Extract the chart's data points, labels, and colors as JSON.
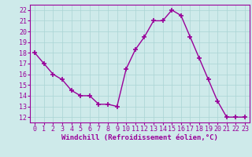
{
  "x": [
    0,
    1,
    2,
    3,
    4,
    5,
    6,
    7,
    8,
    9,
    10,
    11,
    12,
    13,
    14,
    15,
    16,
    17,
    18,
    19,
    20,
    21,
    22,
    23
  ],
  "y": [
    18,
    17,
    16,
    15.5,
    14.5,
    14.0,
    14.0,
    13.2,
    13.2,
    13.0,
    16.5,
    18.3,
    19.5,
    21.0,
    21.0,
    22.0,
    21.5,
    19.5,
    17.5,
    15.5,
    13.5,
    12.0,
    12.0,
    12.0
  ],
  "line_color": "#990099",
  "marker": "+",
  "marker_size": 4,
  "marker_linewidth": 1.2,
  "xlabel": "Windchill (Refroidissement éolien,°C)",
  "xlabel_fontsize": 6.5,
  "ylabel_ticks": [
    12,
    13,
    14,
    15,
    16,
    17,
    18,
    19,
    20,
    21,
    22
  ],
  "xlim": [
    -0.5,
    23.5
  ],
  "ylim": [
    11.5,
    22.5
  ],
  "background_color": "#ceeaea",
  "grid_color": "#aad4d4",
  "tick_fontsize": 6,
  "line_width": 1.0
}
